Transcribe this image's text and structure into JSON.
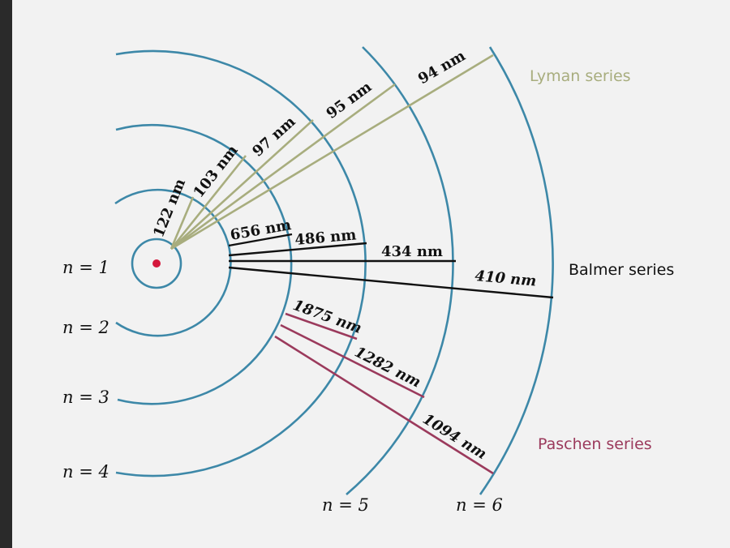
{
  "levels": {
    "n1": "n = 1",
    "n2": "n = 2",
    "n3": "n = 3",
    "n4": "n = 4",
    "n5": "n = 5",
    "n6": "n = 6"
  },
  "series": {
    "lyman": {
      "name": "Lyman series",
      "color": "#a8ad7e"
    },
    "balmer": {
      "name": "Balmer series",
      "color": "#111111"
    },
    "paschen": {
      "name": "Paschen series",
      "color": "#9b3a5c"
    }
  },
  "wavelengths": {
    "lyman": [
      "122 nm",
      "103 nm",
      "97 nm",
      "95 nm",
      "94 nm"
    ],
    "balmer": [
      "656 nm",
      "486 nm",
      "434 nm",
      "410 nm"
    ],
    "paschen": [
      "1875 nm",
      "1282 nm",
      "1094 nm"
    ]
  },
  "colors": {
    "orbit": "#3d88a8",
    "nucleus": "#d4183c"
  }
}
